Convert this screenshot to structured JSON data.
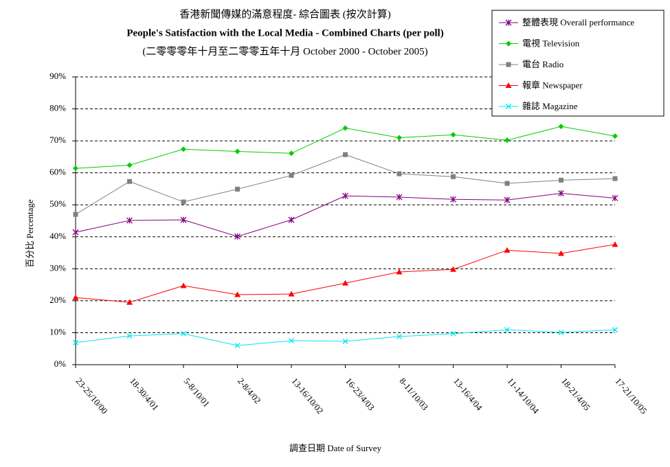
{
  "chart_data": {
    "type": "line",
    "title_lines": [
      "香港新聞傳媒的滿意程度- 綜合圖表 (按次計算)",
      "People's Satisfaction with the Local Media - Combined Charts (per poll)",
      "(二零零零年十月至二零零五年十月 October 2000 - October 2005)"
    ],
    "x_label": "調查日期 Date of Survey",
    "y_label": "百分比 Percentage",
    "categories": [
      "23-25/10/00",
      "18-30/4/01",
      "5-8/10/01",
      "2-8/4/02",
      "13-16/10/02",
      "16-23/4/03",
      "8-11/10/03",
      "13-16/4/04",
      "11-14/10/04",
      "18-21/4/05",
      "17-21/10/05"
    ],
    "series": [
      {
        "name": "整體表現 Overall performance",
        "color": "#800080",
        "marker": "star",
        "values": [
          41.4,
          45.1,
          45.3,
          40.1,
          45.3,
          52.8,
          52.4,
          51.7,
          51.5,
          53.6,
          52.1
        ]
      },
      {
        "name": "電視 Television",
        "color": "#00cc00",
        "marker": "diamond",
        "values": [
          61.4,
          62.4,
          67.4,
          66.7,
          66.1,
          74.0,
          71.0,
          71.9,
          70.2,
          74.5,
          71.5
        ]
      },
      {
        "name": "電台 Radio",
        "color": "#808080",
        "marker": "square",
        "values": [
          47.0,
          57.3,
          50.9,
          54.9,
          59.2,
          65.7,
          59.7,
          58.8,
          56.7,
          57.7,
          58.2
        ]
      },
      {
        "name": "報章 Newspaper",
        "color": "#ff0000",
        "marker": "triangle",
        "values": [
          21.0,
          19.5,
          24.7,
          21.9,
          22.1,
          25.5,
          29.0,
          29.8,
          35.8,
          34.8,
          37.6
        ]
      },
      {
        "name": "雜誌 Magazine",
        "color": "#00e5ee",
        "marker": "cross",
        "values": [
          6.9,
          9.0,
          9.7,
          6.0,
          7.5,
          7.3,
          8.8,
          9.7,
          10.9,
          10.1,
          10.9
        ]
      }
    ],
    "ylim": [
      0,
      90
    ],
    "yticks": [
      {
        "value": 0,
        "label": "0%"
      },
      {
        "value": 10,
        "label": "10%"
      },
      {
        "value": 20,
        "label": "20%"
      },
      {
        "value": 30,
        "label": "30%"
      },
      {
        "value": 40,
        "label": "40%"
      },
      {
        "value": 50,
        "label": "50%"
      },
      {
        "value": 60,
        "label": "60%"
      },
      {
        "value": 70,
        "label": "70%"
      },
      {
        "value": 80,
        "label": "80%"
      },
      {
        "value": 90,
        "label": "90%"
      }
    ],
    "grid": true,
    "legend_position": "top-right"
  }
}
